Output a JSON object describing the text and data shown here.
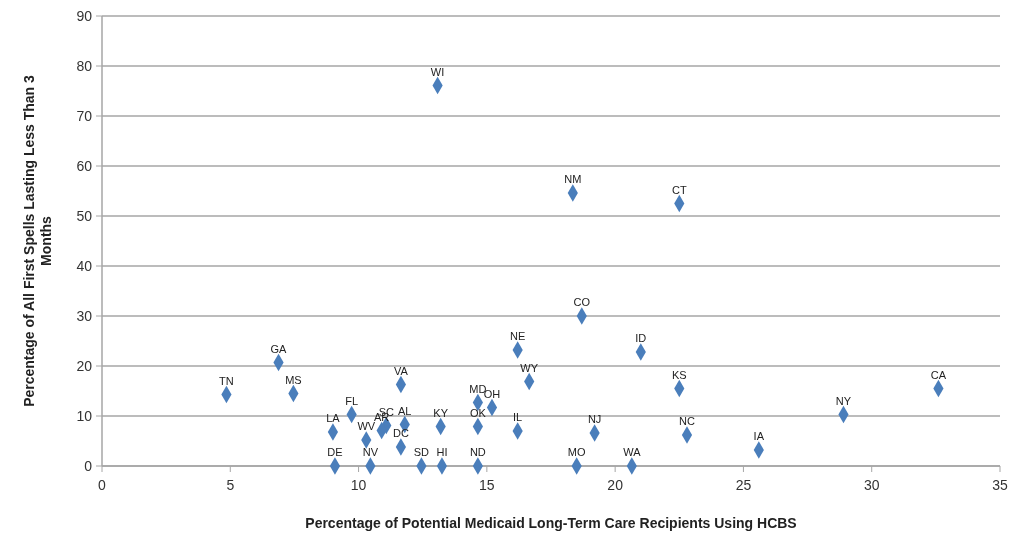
{
  "chart_data": {
    "type": "scatter",
    "xlabel": "Percentage of Potential Medicaid Long-Term Care Recipients Using HCBS",
    "ylabel": "Percentage of All First Spells Lasting Less Than 3 Months",
    "xlim": [
      0,
      35
    ],
    "xticks": [
      0,
      5,
      10,
      15,
      20,
      25,
      30,
      35
    ],
    "ylim": [
      0,
      90
    ],
    "yticks": [
      0,
      10,
      20,
      30,
      40,
      50,
      60,
      70,
      80,
      90
    ],
    "grid": "y",
    "marker": "diamond",
    "series": [
      {
        "color": "#4a7ebb",
        "x": [
          13.08,
          18.35,
          22.5,
          18.7,
          21.0,
          22.5,
          32.6,
          28.9,
          22.8,
          25.6,
          19.2,
          18.5,
          20.65,
          16.2,
          16.65,
          16.2,
          14.65,
          15.2,
          14.65,
          14.65,
          13.2,
          13.25,
          12.45,
          11.8,
          11.65,
          11.65,
          11.08,
          10.9,
          9.73,
          9.0,
          10.3,
          9.08,
          10.46,
          4.85,
          6.88,
          7.46
        ],
        "values": [
          76.1,
          54.6,
          52.5,
          30.0,
          22.8,
          15.5,
          15.5,
          10.3,
          6.2,
          3.2,
          6.6,
          0,
          0,
          23.2,
          16.9,
          7.0,
          12.7,
          11.7,
          7.9,
          0,
          7.9,
          0,
          0,
          8.3,
          3.8,
          16.3,
          8.1,
          7.1,
          10.3,
          6.8,
          5.2,
          0,
          0,
          14.3,
          20.7,
          14.5
        ]
      }
    ],
    "annotations": [
      {
        "text": "WI",
        "x": 13.08,
        "y": 76.1
      },
      {
        "text": "NM",
        "x": 18.35,
        "y": 54.6
      },
      {
        "text": "CT",
        "x": 22.5,
        "y": 52.5
      },
      {
        "text": "CO",
        "x": 18.7,
        "y": 30.0
      },
      {
        "text": "ID",
        "x": 21.0,
        "y": 22.8
      },
      {
        "text": "KS",
        "x": 22.5,
        "y": 15.5
      },
      {
        "text": "CA",
        "x": 32.6,
        "y": 15.5
      },
      {
        "text": "NY",
        "x": 28.9,
        "y": 10.3
      },
      {
        "text": "NC",
        "x": 22.8,
        "y": 6.2
      },
      {
        "text": "IA",
        "x": 25.6,
        "y": 3.2
      },
      {
        "text": "NJ",
        "x": 19.2,
        "y": 6.6
      },
      {
        "text": "MO",
        "x": 18.5,
        "y": 0
      },
      {
        "text": "WA",
        "x": 20.65,
        "y": 0
      },
      {
        "text": "NE",
        "x": 16.2,
        "y": 23.2
      },
      {
        "text": "WY",
        "x": 16.65,
        "y": 16.9
      },
      {
        "text": "IL",
        "x": 16.2,
        "y": 7.0
      },
      {
        "text": "MD",
        "x": 14.65,
        "y": 12.7
      },
      {
        "text": "OH",
        "x": 15.2,
        "y": 11.7
      },
      {
        "text": "OK",
        "x": 14.65,
        "y": 7.9
      },
      {
        "text": "ND",
        "x": 14.65,
        "y": 0
      },
      {
        "text": "KY",
        "x": 13.2,
        "y": 7.9
      },
      {
        "text": "HI",
        "x": 13.25,
        "y": 0
      },
      {
        "text": "SD",
        "x": 12.45,
        "y": 0
      },
      {
        "text": "AL",
        "x": 11.8,
        "y": 8.3
      },
      {
        "text": "DC",
        "x": 11.65,
        "y": 3.8
      },
      {
        "text": "VA",
        "x": 11.65,
        "y": 16.3
      },
      {
        "text": "SC",
        "x": 11.08,
        "y": 8.1
      },
      {
        "text": "AR",
        "x": 10.9,
        "y": 7.1
      },
      {
        "text": "FL",
        "x": 9.73,
        "y": 10.3
      },
      {
        "text": "LA",
        "x": 9.0,
        "y": 6.8
      },
      {
        "text": "WV",
        "x": 10.3,
        "y": 5.2
      },
      {
        "text": "DE",
        "x": 9.08,
        "y": 0
      },
      {
        "text": "NV",
        "x": 10.46,
        "y": 0
      },
      {
        "text": "TN",
        "x": 4.85,
        "y": 14.3
      },
      {
        "text": "GA",
        "x": 6.88,
        "y": 20.7
      },
      {
        "text": "MS",
        "x": 7.46,
        "y": 14.5
      }
    ]
  }
}
